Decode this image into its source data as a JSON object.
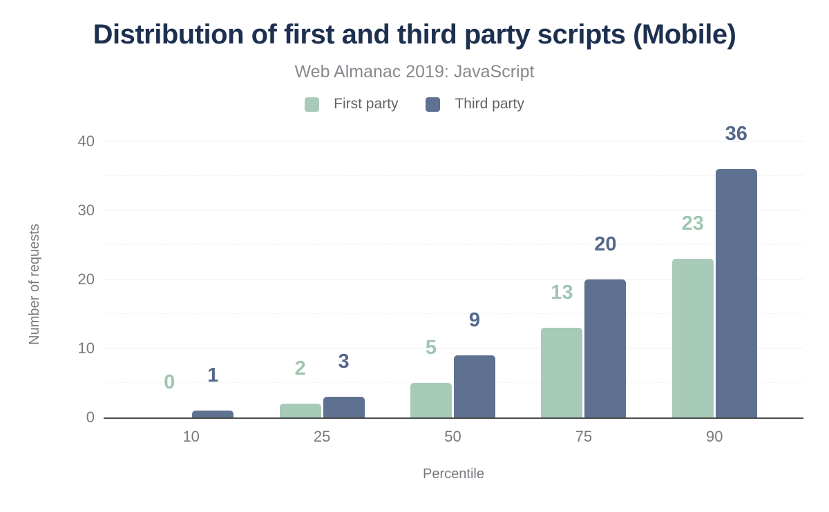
{
  "chart": {
    "title": "Distribution of first and third party scripts (Mobile)",
    "subtitle": "Web Almanac 2019: JavaScript",
    "xlabel": "Percentile",
    "ylabel": "Number of requests"
  },
  "chart_data": {
    "type": "bar",
    "title": "Distribution of first and third party scripts (Mobile)",
    "subtitle": "Web Almanac 2019: JavaScript",
    "xlabel": "Percentile",
    "ylabel": "Number of requests",
    "categories": [
      "10",
      "25",
      "50",
      "75",
      "90"
    ],
    "series": [
      {
        "name": "First party",
        "color": "#a8cab9",
        "label_color": "#a0c6b2",
        "values": [
          0,
          2,
          5,
          13,
          23
        ]
      },
      {
        "name": "Third party",
        "color": "#5f7190",
        "label_color": "#54678c",
        "values": [
          1,
          3,
          9,
          20,
          36
        ]
      }
    ],
    "y_ticks": [
      0,
      10,
      20,
      30,
      40
    ],
    "minor_gridlines": [
      5,
      15,
      25,
      35
    ],
    "ylim": [
      0,
      40
    ],
    "grid": true,
    "legend_position": "top",
    "value_labels": true
  },
  "colors": {
    "title_text": "#1e3050",
    "subtitle_text": "#86898e",
    "legend_text": "#5f6368",
    "axis_text": "#77797e",
    "grid_major": "#ececec",
    "grid_minor": "#f0f0f0",
    "axis_line": "#4a4a4a",
    "background": "#ffffff"
  }
}
